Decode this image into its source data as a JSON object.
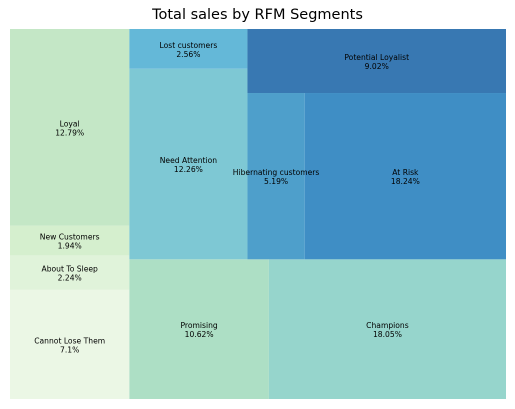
{
  "chart_data": {
    "type": "treemap",
    "title": "Total sales by RFM Segments",
    "segments": [
      {
        "name": "Cannot Lose Them",
        "label": "7.1%",
        "value": 7.1,
        "color": "#ebf7e5"
      },
      {
        "name": "About To Sleep",
        "label": "2.24%",
        "value": 2.24,
        "color": "#e0f3da"
      },
      {
        "name": "New Customers",
        "label": "1.94%",
        "value": 1.94,
        "color": "#d5efce"
      },
      {
        "name": "Loyal",
        "label": "12.79%",
        "value": 12.79,
        "color": "#c4e7c6"
      },
      {
        "name": "Promising",
        "label": "10.62%",
        "value": 10.62,
        "color": "#addfc5"
      },
      {
        "name": "Champions",
        "label": "18.05%",
        "value": 18.05,
        "color": "#96d5cc"
      },
      {
        "name": "Need Attention",
        "label": "12.26%",
        "value": 12.26,
        "color": "#7ec8d4"
      },
      {
        "name": "Lost customers",
        "label": "2.56%",
        "value": 2.56,
        "color": "#64b8d8"
      },
      {
        "name": "Hibernating customers",
        "label": "5.19%",
        "value": 5.19,
        "color": "#4e9fcb"
      },
      {
        "name": "At Risk",
        "label": "18.24%",
        "value": 18.24,
        "color": "#3f8ec5"
      },
      {
        "name": "Potential Loyalist",
        "label": "9.02%",
        "value": 9.02,
        "color": "#3878b2"
      }
    ]
  }
}
